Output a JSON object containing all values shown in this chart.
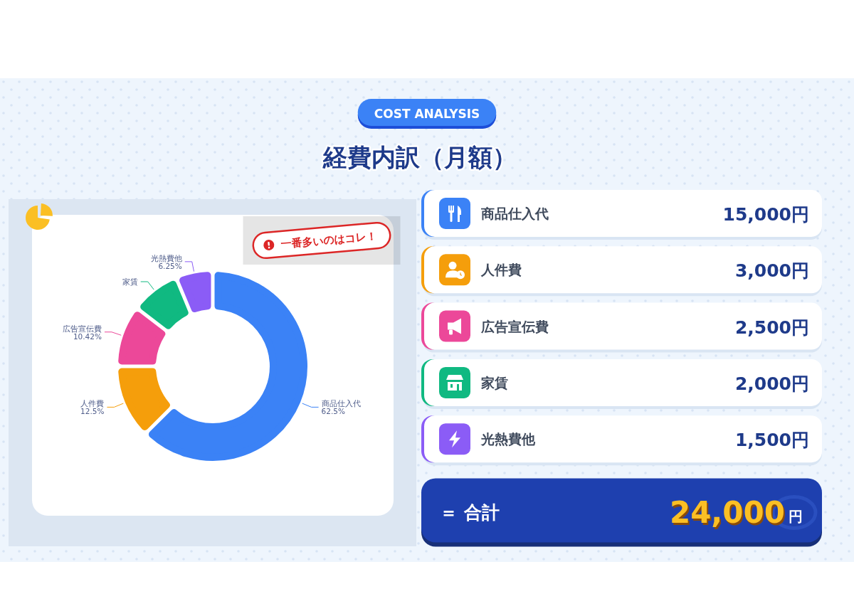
{
  "chart_data": {
    "type": "donut",
    "title": "経費内訳（月額）",
    "subtitle": "COST ANALYSIS",
    "categories": [
      "商品仕入代",
      "人件費",
      "広告宣伝費",
      "家賃",
      "光熱費他"
    ],
    "values": [
      15000,
      3000,
      2500,
      2000,
      1500
    ],
    "value_labels": [
      "15,000円",
      "3,000円",
      "2,500円",
      "2,000円",
      "1,500円"
    ],
    "colors": [
      "#3b82f6",
      "#f59e0b",
      "#ec4899",
      "#10b981",
      "#8b5cf6"
    ],
    "legend": "right",
    "annotations": [
      {
        "text": "62.5%",
        "x": "商品仕入代"
      },
      {
        "text": "12.5%",
        "x": "人件費"
      },
      {
        "text": "10.42%",
        "x": "広告宣伝費"
      },
      {
        "text": "6.25%",
        "x": "光熱費他"
      },
      "一番多いのはコレ！",
      "＝ 合計",
      "24,000",
      "円"
    ]
  }
}
